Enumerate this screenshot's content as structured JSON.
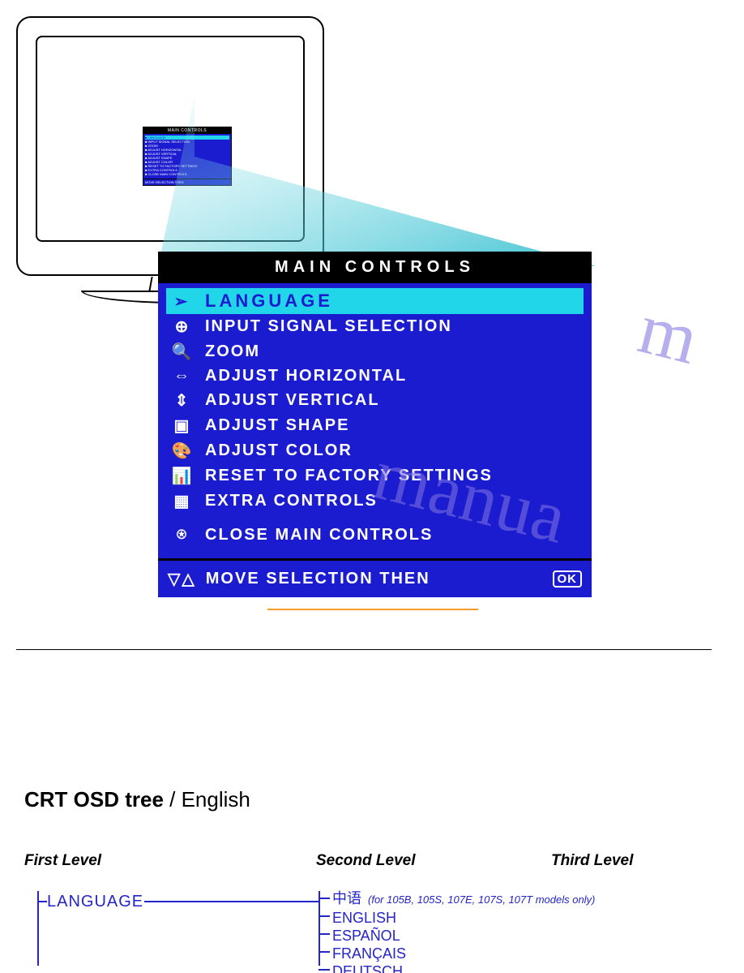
{
  "colors": {
    "osd_bg": "#1b1bcf",
    "osd_highlight_bg": "#22d6ea",
    "osd_highlight_text": "#1b1bcf",
    "osd_text": "#ffffff",
    "header_bg": "#000000",
    "tree_blue": "#2424c9",
    "orange_rule": "#f59b2a",
    "watermark": "#7a6fe0"
  },
  "osd": {
    "header": "MAIN CONTROLS",
    "items": [
      {
        "icon": "globe-icon",
        "glyph": "➢",
        "label": "LANGUAGE",
        "selected": true
      },
      {
        "icon": "input-icon",
        "glyph": "⊕",
        "label": "INPUT SIGNAL SELECTION",
        "selected": false
      },
      {
        "icon": "zoom-icon",
        "glyph": "🔍",
        "label": "ZOOM",
        "selected": false
      },
      {
        "icon": "horiz-icon",
        "glyph": "⇔",
        "label": "ADJUST HORIZONTAL",
        "selected": false
      },
      {
        "icon": "vert-icon",
        "glyph": "⇕",
        "label": "ADJUST VERTICAL",
        "selected": false
      },
      {
        "icon": "shape-icon",
        "glyph": "▣",
        "label": "ADJUST SHAPE",
        "selected": false
      },
      {
        "icon": "color-icon",
        "glyph": "🎨",
        "label": "ADJUST COLOR",
        "selected": false
      },
      {
        "icon": "reset-icon",
        "glyph": "📊",
        "label": "RESET TO FACTORY SETTINGS",
        "selected": false
      },
      {
        "icon": "extra-icon",
        "glyph": "▦",
        "label": "EXTRA CONTROLS",
        "selected": false
      }
    ],
    "close": {
      "icon": "close-icon",
      "glyph": "⍟",
      "label": "CLOSE MAIN CONTROLS"
    },
    "footer": {
      "nav_glyph": "▽△",
      "text": "MOVE SELECTION THEN",
      "ok_glyph": "OK"
    }
  },
  "tree": {
    "title_bold": "CRT OSD tree",
    "title_rest": " / English",
    "levels": {
      "l1": "First Level",
      "l2": "Second Level",
      "l3": "Third Level"
    },
    "first": "LANGUAGE",
    "second": [
      {
        "label": "中语",
        "note": "(for 105B, 105S, 107E, 107S, 107T models only)"
      },
      {
        "label": "ENGLISH"
      },
      {
        "label": "ESPAÑOL"
      },
      {
        "label": "FRANÇAIS"
      },
      {
        "label": "DEUTSCH",
        "cut": true
      }
    ]
  },
  "watermark": "manua",
  "watermark2": "m"
}
